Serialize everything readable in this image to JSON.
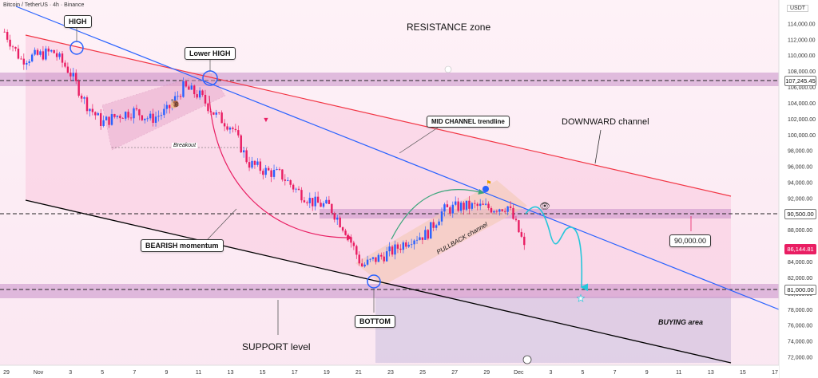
{
  "header": {
    "symbol_line": "Bitcoin / TetherUS · 4h · Binance",
    "currency": "USDT"
  },
  "annotations": {
    "high": "HIGH",
    "lower_high": "Lower HIGH",
    "resistance_zone": "RESISTANCE zone",
    "mid_channel": "MID CHANNEL trendline",
    "downward_channel": "DOWNWARD channel",
    "breakout": "Breakout",
    "bearish_momentum": "BEARISH momentum",
    "pullback_channel": "PULLBACK channel",
    "bottom": "BOTTOM",
    "support_level": "SUPPORT level",
    "buying_area": "BUYING area",
    "target": "90,000.00"
  },
  "price_tags": {
    "resistance": "107,245.45",
    "level_90500": "90,500.00",
    "current": "86,144.81",
    "support": "81,000.00"
  },
  "colors": {
    "bull": "#2962ff",
    "bear": "#e91e63",
    "mid_line": "#2962ff",
    "upper_line": "#f23645",
    "lower_line": "#000000",
    "zone": "#b06fb6",
    "target": "#26c6da"
  },
  "chart_data": {
    "type": "candlestick",
    "title": "Bitcoin / TetherUS · 4h · Binance",
    "y_unit": "USDT",
    "ylim": [
      71000,
      117000
    ],
    "yticks": [
      72000,
      74000,
      76000,
      78000,
      80000,
      82000,
      84000,
      86000,
      88000,
      90000,
      92000,
      94000,
      96000,
      98000,
      100000,
      102000,
      104000,
      106000,
      108000,
      110000,
      112000,
      114000
    ],
    "xticks": [
      "29",
      "Nov",
      "3",
      "5",
      "7",
      "9",
      "11",
      "13",
      "15",
      "17",
      "19",
      "21",
      "23",
      "25",
      "27",
      "29",
      "Dec",
      "3",
      "5",
      "7",
      "9",
      "11",
      "13",
      "15",
      "17"
    ],
    "levels": {
      "resistance": 107245.45,
      "mid": 90500,
      "support": 81000,
      "target": 90000,
      "last_price": 86144.81
    },
    "close_path": [
      {
        "d": "Oct 29",
        "close": 113000
      },
      {
        "d": "Oct 31",
        "close": 109500
      },
      {
        "d": "Nov 1",
        "close": 110000
      },
      {
        "d": "Nov 2",
        "close": 110500
      },
      {
        "d": "Nov 3",
        "close": 108000
      },
      {
        "d": "Nov 4",
        "close": 104000
      },
      {
        "d": "Nov 5",
        "close": 101500
      },
      {
        "d": "Nov 6",
        "close": 102500
      },
      {
        "d": "Nov 7",
        "close": 103000
      },
      {
        "d": "Nov 8",
        "close": 102000
      },
      {
        "d": "Nov 9",
        "close": 103000
      },
      {
        "d": "Nov 10",
        "close": 106000
      },
      {
        "d": "Nov 11",
        "close": 105000
      },
      {
        "d": "Nov 12",
        "close": 102500
      },
      {
        "d": "Nov 13",
        "close": 101000
      },
      {
        "d": "Nov 14",
        "close": 96500
      },
      {
        "d": "Nov 15",
        "close": 95500
      },
      {
        "d": "Nov 16",
        "close": 95000
      },
      {
        "d": "Nov 17",
        "close": 93000
      },
      {
        "d": "Nov 18",
        "close": 91500
      },
      {
        "d": "Nov 19",
        "close": 91000
      },
      {
        "d": "Nov 20",
        "close": 88000
      },
      {
        "d": "Nov 21",
        "close": 83500
      },
      {
        "d": "Nov 22",
        "close": 84500
      },
      {
        "d": "Nov 23",
        "close": 85500
      },
      {
        "d": "Nov 24",
        "close": 87000
      },
      {
        "d": "Nov 25",
        "close": 87500
      },
      {
        "d": "Nov 26",
        "close": 90500
      },
      {
        "d": "Nov 27",
        "close": 91000
      },
      {
        "d": "Nov 28",
        "close": 91000
      },
      {
        "d": "Nov 29",
        "close": 90800
      },
      {
        "d": "Nov 30",
        "close": 91000
      },
      {
        "d": "Dec 1",
        "close": 86144.81
      }
    ]
  }
}
